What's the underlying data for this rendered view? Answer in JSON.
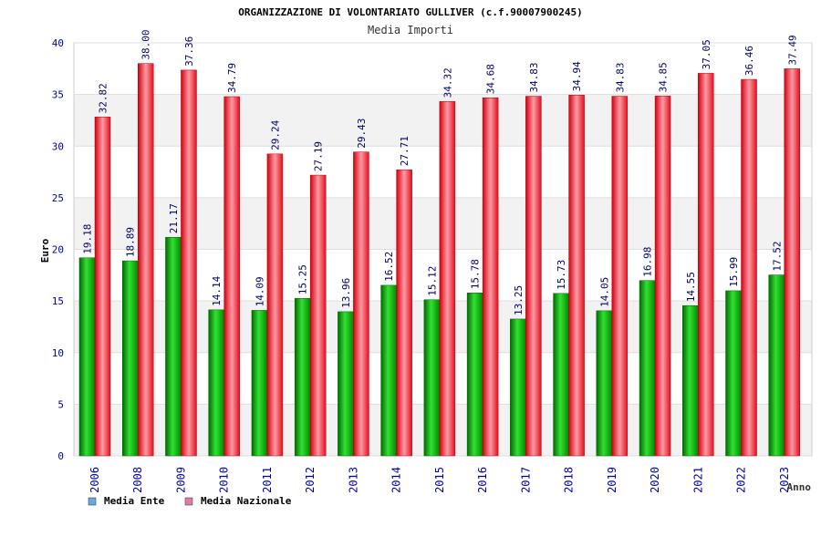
{
  "chart_data": {
    "type": "bar",
    "title": "ORGANIZZAZIONE DI VOLONTARIATO GULLIVER (c.f.90007900245)",
    "subtitle": "Media Importi",
    "xlabel": "Anno",
    "ylabel": "Euro",
    "ylim": [
      0,
      40
    ],
    "yticks": [
      0,
      5,
      10,
      15,
      20,
      25,
      30,
      35,
      40
    ],
    "categories": [
      "2006",
      "2008",
      "2009",
      "2010",
      "2011",
      "2012",
      "2013",
      "2014",
      "2015",
      "2016",
      "2017",
      "2018",
      "2019",
      "2020",
      "2021",
      "2022",
      "2023"
    ],
    "series": [
      {
        "name": "Media Ente",
        "color": "#00aa00",
        "values": [
          19.18,
          18.89,
          21.17,
          14.14,
          14.09,
          15.25,
          13.96,
          16.52,
          15.12,
          15.78,
          13.25,
          15.73,
          14.05,
          16.98,
          14.55,
          15.99,
          17.52
        ],
        "labels": [
          "19.18",
          "18.89",
          "21.17",
          "14.14",
          "14.09",
          "15.25",
          "13.96",
          "16.52",
          "15.12",
          "15.78",
          "13.25",
          "15.73",
          "14.05",
          "16.98",
          "14.55",
          "15.99",
          "17.52"
        ]
      },
      {
        "name": "Media Nazionale",
        "color": "#ee1122",
        "values": [
          32.82,
          38.0,
          37.36,
          34.79,
          29.24,
          27.19,
          29.43,
          27.71,
          34.32,
          34.68,
          34.83,
          34.94,
          34.83,
          34.85,
          37.05,
          36.46,
          37.49
        ],
        "labels": [
          "32.82",
          "38.00",
          "37.36",
          "34.79",
          "29.24",
          "27.19",
          "29.43",
          "27.71",
          "34.32",
          "34.68",
          "34.83",
          "34.94",
          "34.83",
          "34.85",
          "37.05",
          "36.46",
          "37.49"
        ]
      }
    ],
    "legend": {
      "position": "bottom-left",
      "items": [
        {
          "label": "Media Ente",
          "color": "#6aa6e8"
        },
        {
          "label": "Media Nazionale",
          "color": "#e07aa8"
        }
      ]
    },
    "grid": true
  }
}
